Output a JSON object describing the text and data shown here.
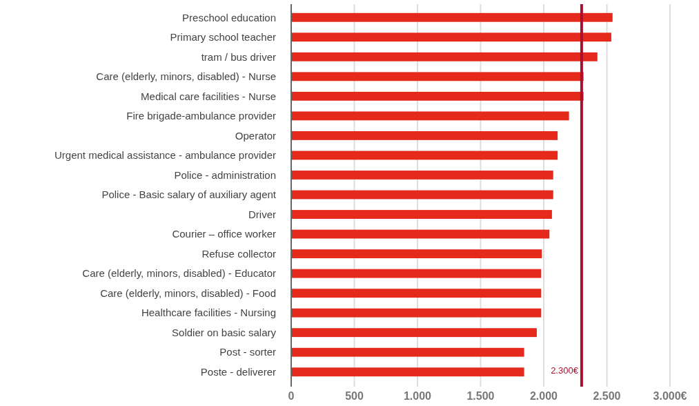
{
  "chart_data": {
    "type": "bar",
    "orientation": "horizontal",
    "categories": [
      "Preschool education",
      "Primary school teacher",
      "tram / bus driver",
      "Care (elderly, minors, disabled) - Nurse",
      "Medical care facilities - Nurse",
      "Fire brigade-ambulance provider",
      "Operator",
      "Urgent medical assistance - ambulance provider",
      "Police - administration",
      "Police - Basic salary of auxiliary agent",
      "Driver",
      "Courier – office worker",
      "Refuse collector",
      "Care (elderly, minors, disabled) - Educator",
      "Care (elderly, minors, disabled) - Food",
      "Healthcare facilities - Nursing",
      "Soldier on basic salary",
      "Post - sorter",
      "Poste - deliverer"
    ],
    "values": [
      2545,
      2535,
      2425,
      2315,
      2315,
      2200,
      2110,
      2110,
      2075,
      2075,
      2065,
      2045,
      1985,
      1980,
      1980,
      1980,
      1945,
      1845,
      1845
    ],
    "color": "#e52a1c",
    "xlim": [
      0,
      3000
    ],
    "xticks": [
      0,
      500,
      {
        "value": 1000,
        "label": "1.000"
      },
      {
        "value": 1500,
        "label": "1.500"
      },
      {
        "value": 2000,
        "label": "2.000"
      },
      {
        "value": 2500,
        "label": "2.500"
      },
      {
        "value": 3000,
        "label": "3.000€"
      }
    ],
    "grid": "x",
    "ref_lines": [
      {
        "axis": "x",
        "value": 2300,
        "label": "2.300€",
        "color": "#a8112e"
      }
    ]
  }
}
